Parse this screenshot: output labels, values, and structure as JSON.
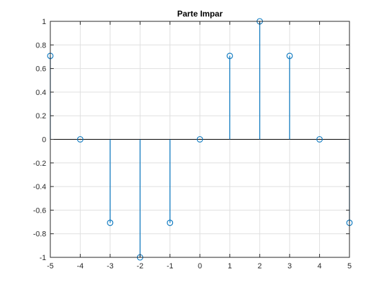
{
  "chart_data": {
    "type": "stem",
    "title": "Parte Impar",
    "xlabel": "",
    "ylabel": "",
    "xlim": [
      -5,
      5
    ],
    "ylim": [
      -1,
      1
    ],
    "grid": true,
    "x": [
      -5,
      -4,
      -3,
      -2,
      -1,
      0,
      1,
      2,
      3,
      4,
      5
    ],
    "series": [
      {
        "values": [
          0.7071,
          0,
          -0.7071,
          -1,
          -0.7071,
          0,
          0.7071,
          1,
          0.7071,
          0,
          -0.7071
        ]
      }
    ],
    "xticks": [
      -5,
      -4,
      -3,
      -2,
      -1,
      0,
      1,
      2,
      3,
      4,
      5
    ],
    "xtick_labels": [
      "-5",
      "-4",
      "-3",
      "-2",
      "-1",
      "0",
      "1",
      "2",
      "3",
      "4",
      "5"
    ],
    "yticks": [
      -1,
      -0.8,
      -0.6,
      -0.4,
      -0.2,
      0,
      0.2,
      0.4,
      0.6,
      0.8,
      1
    ],
    "ytick_labels": [
      "-1",
      "-0.8",
      "-0.6",
      "-0.4",
      "-0.2",
      "0",
      "0.2",
      "0.4",
      "0.6",
      "0.8",
      "1"
    ],
    "colors": {
      "series": "#0072bd",
      "axis": "#262626",
      "grid": "#dfdfdf",
      "baseline": "#000000"
    }
  }
}
